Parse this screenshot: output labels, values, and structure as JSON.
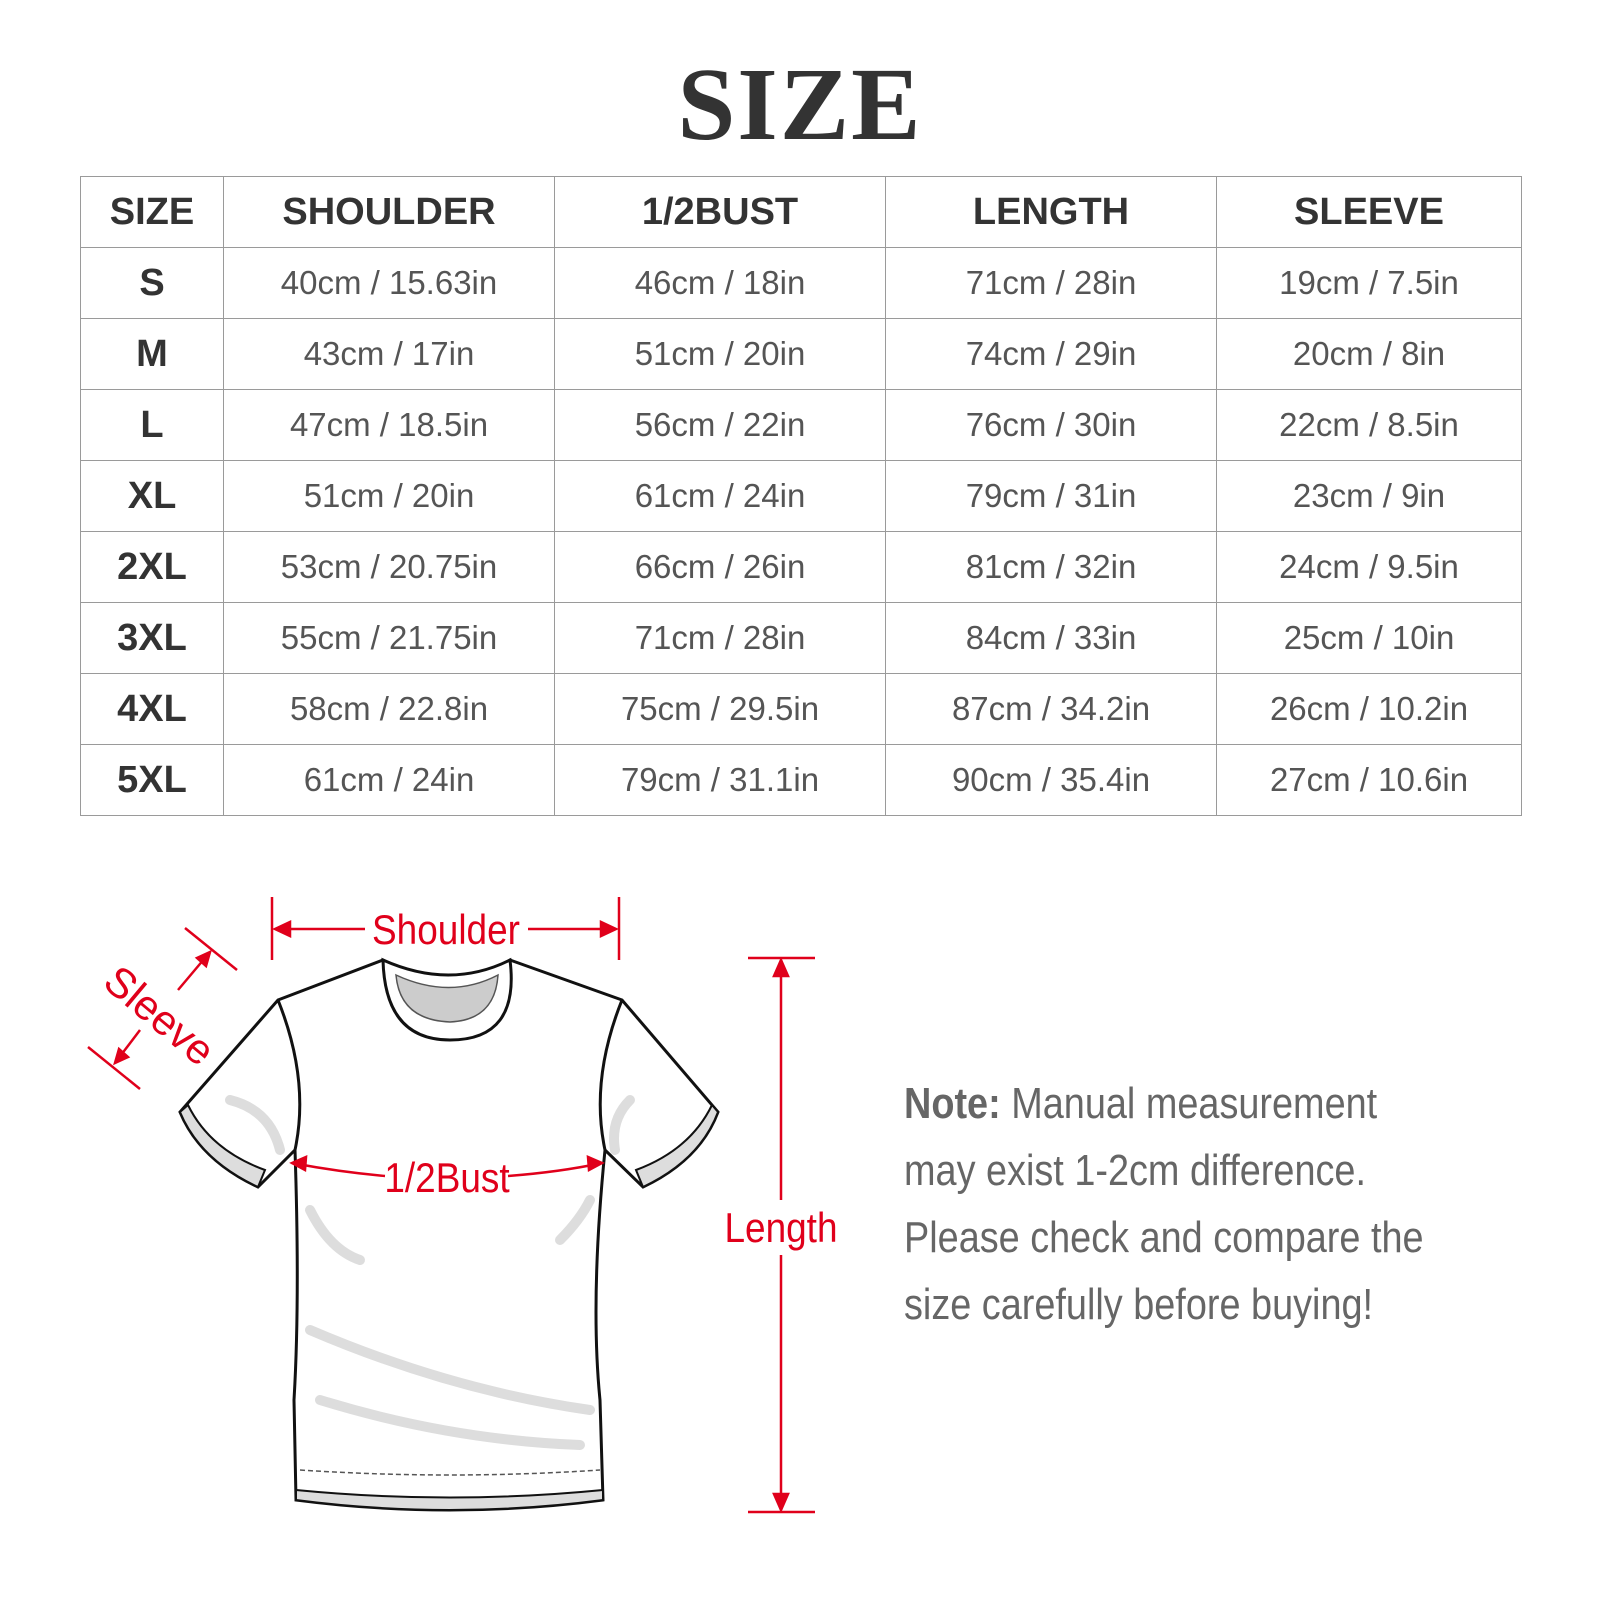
{
  "title": "SIZE",
  "table": {
    "headers": [
      "SIZE",
      "SHOULDER",
      "1/2BUST",
      "LENGTH",
      "SLEEVE"
    ],
    "rows": [
      [
        "S",
        "40cm / 15.63in",
        "46cm / 18in",
        "71cm / 28in",
        "19cm / 7.5in"
      ],
      [
        "M",
        "43cm / 17in",
        "51cm / 20in",
        "74cm / 29in",
        "20cm / 8in"
      ],
      [
        "L",
        "47cm / 18.5in",
        "56cm / 22in",
        "76cm / 30in",
        "22cm / 8.5in"
      ],
      [
        "XL",
        "51cm / 20in",
        "61cm / 24in",
        "79cm / 31in",
        "23cm / 9in"
      ],
      [
        "2XL",
        "53cm / 20.75in",
        "66cm / 26in",
        "81cm / 32in",
        "24cm / 9.5in"
      ],
      [
        "3XL",
        "55cm / 21.75in",
        "71cm / 28in",
        "84cm / 33in",
        "25cm / 10in"
      ],
      [
        "4XL",
        "58cm / 22.8in",
        "75cm / 29.5in",
        "87cm / 34.2in",
        "26cm / 10.2in"
      ],
      [
        "5XL",
        "61cm / 24in",
        "79cm / 31.1in",
        "90cm / 35.4in",
        "27cm / 10.6in"
      ]
    ]
  },
  "diagram": {
    "shoulder": "Shoulder",
    "sleeve": "Sleeve",
    "bust": "1/2Bust",
    "length": "Length",
    "accent": "#e0001b"
  },
  "note": {
    "label": "Note:",
    "text": " Manual measurement may exist 1-2cm difference. Please check and compare the size carefully before buying!"
  }
}
